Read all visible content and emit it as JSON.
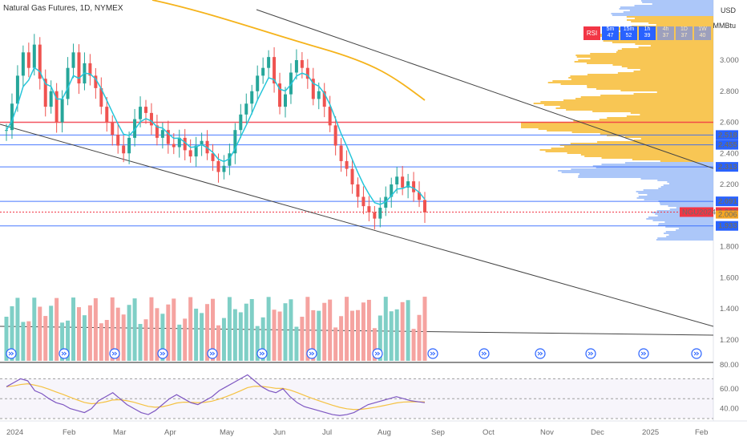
{
  "header": {
    "title": "Natural Gas Futures, 1D, NYMEX"
  },
  "axis_units": {
    "currency": "USD",
    "unit": "MMBtu"
  },
  "rsi_strip": {
    "label": "RSI",
    "cells": [
      {
        "tf": "5m",
        "val": "47"
      },
      {
        "tf": "15m",
        "val": "52"
      },
      {
        "tf": "1h",
        "val": "39"
      },
      {
        "tf": "4h",
        "val": "37"
      },
      {
        "tf": "1D",
        "val": "37"
      },
      {
        "tf": "1W",
        "val": "40"
      }
    ]
  },
  "colors": {
    "up": "#26a69a",
    "down": "#ef5350",
    "vol_up": "#7fcfc6",
    "vol_down": "#f5a3a0",
    "ema": "#26c6da",
    "ma200": "#f5b31b",
    "trend": "#444444",
    "blue_line": "#2962ff",
    "red_line": "#f23645",
    "rsi": "#7e57c2",
    "rsi_ma": "#f5c242",
    "profile": "#f5b31b",
    "profile_blue": "#90b4f7"
  },
  "chart_data": [
    {
      "type": "candlestick",
      "title": "Natural Gas Futures, 1D, NYMEX",
      "ylim": [
        1.7,
        3.15
      ],
      "price_ticks": [
        "3.000",
        "2.800",
        "2.600",
        "2.400",
        "2.200",
        "1.800",
        "1.600",
        "1.400",
        "1.200"
      ],
      "x_labels": [
        "2024",
        "Feb",
        "Mar",
        "Apr",
        "May",
        "Jun",
        "Jul",
        "Aug",
        "Sep",
        "Oct",
        "Nov",
        "Dec",
        "2025",
        "Feb"
      ],
      "horizontal_levels": [
        {
          "price": 2.6,
          "color": "red",
          "label": ""
        },
        {
          "price": 2.518,
          "color": "blue",
          "label": "2.518"
        },
        {
          "price": 2.455,
          "color": "blue",
          "label": "2.455"
        },
        {
          "price": 2.313,
          "color": "blue",
          "label": "2.313"
        },
        {
          "price": 2.091,
          "color": "blue",
          "label": "2.091"
        },
        {
          "price": 1.933,
          "color": "blue",
          "label": "1.933"
        }
      ],
      "last_price": {
        "symbol": "NGU2024",
        "value": "2.022"
      },
      "extra_badge": "2.006",
      "closes": [
        2.55,
        2.72,
        2.9,
        3.05,
        2.95,
        3.1,
        2.88,
        2.7,
        2.8,
        2.6,
        2.75,
        2.95,
        3.05,
        2.85,
        2.98,
        2.9,
        2.82,
        2.7,
        2.6,
        2.52,
        2.45,
        2.4,
        2.5,
        2.62,
        2.7,
        2.66,
        2.58,
        2.5,
        2.55,
        2.46,
        2.44,
        2.5,
        2.42,
        2.38,
        2.45,
        2.48,
        2.4,
        2.35,
        2.28,
        2.32,
        2.4,
        2.55,
        2.65,
        2.72,
        2.8,
        2.9,
        2.95,
        3.02,
        2.85,
        2.7,
        2.78,
        2.92,
        3.0,
        2.95,
        2.88,
        2.75,
        2.8,
        2.7,
        2.58,
        2.45,
        2.35,
        2.3,
        2.2,
        2.12,
        2.06,
        2.02,
        1.98,
        2.05,
        2.12,
        2.2,
        2.25,
        2.18,
        2.22,
        2.15,
        2.1,
        2.02
      ],
      "volume_ticks": [
        "80.00"
      ],
      "rsi_ticks": [
        "60.00",
        "40.00"
      ],
      "rsi_values": [
        62,
        66,
        70,
        68,
        58,
        55,
        50,
        46,
        44,
        40,
        38,
        36,
        40,
        48,
        52,
        56,
        50,
        44,
        40,
        36,
        34,
        38,
        44,
        50,
        54,
        50,
        46,
        44,
        48,
        52,
        58,
        62,
        66,
        70,
        74,
        68,
        62,
        58,
        56,
        60,
        52,
        46,
        42,
        40,
        38,
        36,
        34,
        33,
        34,
        36,
        40,
        44,
        46,
        48,
        50,
        52,
        50,
        48,
        47,
        46
      ]
    }
  ]
}
